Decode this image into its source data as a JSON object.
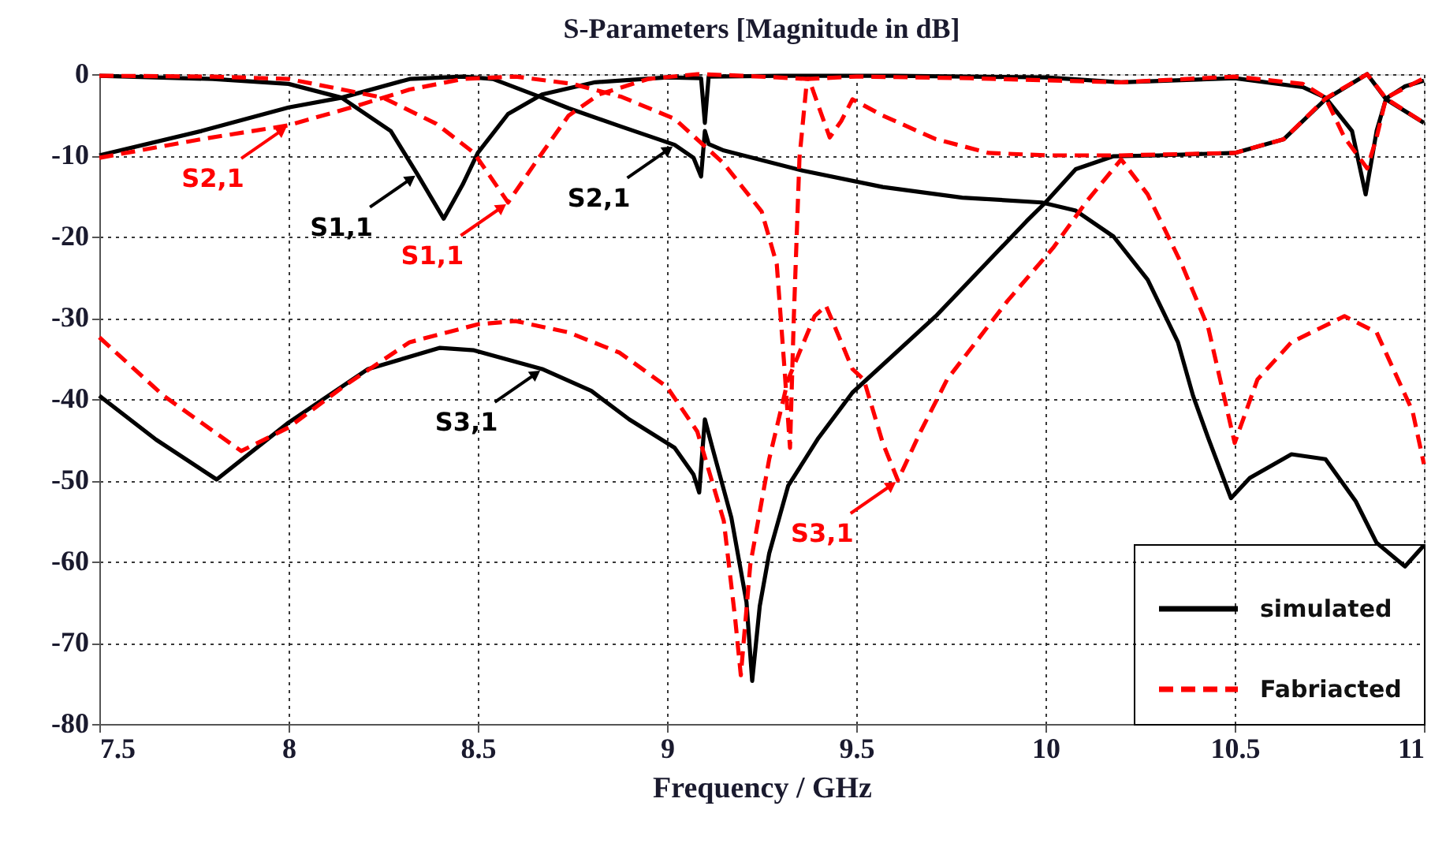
{
  "chart_data": {
    "type": "line",
    "title": "S-Parameters [Magnitude in dB]",
    "xlabel": "Frequency / GHz",
    "xlim": [
      7.5,
      11
    ],
    "xticks": [
      7.5,
      8,
      8.5,
      9,
      9.5,
      10,
      10.5,
      11
    ],
    "ylim": [
      -80,
      0
    ],
    "yticks": [
      -80,
      -70,
      -60,
      -50,
      -40,
      -30,
      -20,
      -10,
      0
    ],
    "grid": true,
    "legend": "bottom right",
    "marker": "none",
    "series": [
      {
        "name": "simulated",
        "color": "#000000",
        "line_style": "solid",
        "x": [
          7.5,
          7.8,
          8.0,
          8.14,
          8.27,
          8.34,
          8.41,
          8.46,
          8.5,
          8.58,
          8.67,
          8.81,
          9.0,
          9.09,
          9.1,
          9.11,
          9.3,
          9.6,
          10.0,
          10.2,
          10.5,
          10.68,
          10.74,
          10.81,
          10.846,
          10.875,
          10.9,
          10.95,
          11
        ],
        "values": [
          -0.2,
          -0.6,
          -1.2,
          -2.9,
          -7,
          -12.3,
          -17.8,
          -13.6,
          -9.7,
          -4.9,
          -2.5,
          -1,
          -0.4,
          -0.5,
          -6,
          -0.3,
          -0.2,
          -0.2,
          -0.4,
          -1,
          -0.5,
          -1.6,
          -2.9,
          -7,
          -14.8,
          -7,
          -3,
          -1.5,
          -0.8
        ]
      },
      {
        "color": "#000000",
        "line_style": "solid",
        "x": [
          7.5,
          7.77,
          8.0,
          8.14,
          8.32,
          8.46,
          8.54,
          8.67,
          8.74,
          8.875,
          9.02,
          9.07,
          9.09,
          9.1,
          9.11,
          9.15,
          9.36,
          9.57,
          9.78,
          9.99,
          10.08,
          10.18,
          10.27,
          10.35,
          10.39,
          10.43,
          10.49,
          10.54,
          10.65,
          10.74,
          10.82,
          10.875,
          10.95,
          11
        ],
        "values": [
          -10,
          -7,
          -4.1,
          -2.9,
          -0.6,
          -0.3,
          -0.6,
          -2.9,
          -4.2,
          -6.4,
          -8.7,
          -10.3,
          -12.6,
          -7,
          -8.6,
          -9.4,
          -11.9,
          -13.9,
          -15.2,
          -15.8,
          -16.8,
          -20,
          -25.3,
          -33,
          -39.6,
          -44.8,
          -52.2,
          -49.7,
          -46.8,
          -47.4,
          -52.6,
          -57.7,
          -60.6,
          -58
        ]
      },
      {
        "color": "#000000",
        "line_style": "solid",
        "x": [
          7.5,
          7.65,
          7.81,
          8.0,
          8.21,
          8.4,
          8.49,
          8.67,
          8.8,
          8.9,
          9.02,
          9.07,
          9.085,
          9.1,
          9.12,
          9.17,
          9.21,
          9.225,
          9.245,
          9.27,
          9.32,
          9.4,
          9.49,
          9.71,
          9.95,
          10.0,
          10.08,
          10.18,
          10.3,
          10.5,
          10.63,
          10.74,
          10.85,
          10.9,
          11
        ],
        "values": [
          -39.6,
          -45,
          -49.9,
          -42.9,
          -36.3,
          -33.7,
          -34,
          -36.3,
          -39,
          -42.5,
          -46,
          -49.3,
          -51.5,
          -42.5,
          -46,
          -54.6,
          -65,
          -74.7,
          -65.5,
          -59,
          -50.7,
          -44.8,
          -39.2,
          -29.8,
          -18.1,
          -15.8,
          -11.7,
          -10.1,
          -10,
          -9.7,
          -8,
          -3.1,
          0,
          -3.1,
          -6
        ]
      },
      {
        "name": "Fabriacted",
        "color": "#ff0000",
        "line_style": "dashed",
        "x": [
          7.5,
          7.8,
          8.0,
          8.11,
          8.25,
          8.39,
          8.49,
          8.58,
          8.67,
          8.74,
          8.82,
          8.95,
          9.08,
          9.2,
          9.375,
          9.4,
          9.43,
          9.46,
          9.49,
          9.57,
          9.71,
          9.85,
          10.0,
          10.2,
          10.5,
          10.63,
          10.74,
          10.85,
          10.9,
          11
        ],
        "values": [
          -0.2,
          -0.3,
          -0.6,
          -1.6,
          -2.9,
          -6.1,
          -9.7,
          -15.8,
          -9.7,
          -5.1,
          -2.5,
          -0.6,
          0,
          -0.2,
          -0.6,
          -3.9,
          -7.8,
          -5.8,
          -3.1,
          -5.1,
          -8,
          -9.7,
          -10,
          -10,
          -9.7,
          -8,
          -3,
          0,
          -3,
          -6
        ]
      },
      {
        "color": "#ff0000",
        "line_style": "dashed",
        "x": [
          7.5,
          7.77,
          8.0,
          8.18,
          8.32,
          8.46,
          8.6,
          8.75,
          8.88,
          9.02,
          9.15,
          9.25,
          9.29,
          9.31,
          9.325,
          9.335,
          9.35,
          9.37,
          9.5,
          9.8,
          10.2,
          10.5,
          10.68,
          10.74,
          10.79,
          10.85,
          10.875,
          10.9,
          11
        ],
        "values": [
          -10.3,
          -8,
          -6.3,
          -3.9,
          -1.9,
          -0.6,
          -0.3,
          -1.2,
          -2.8,
          -5.5,
          -11,
          -16.9,
          -23.4,
          -36,
          -46,
          -30,
          -10.3,
          -0.6,
          -0.3,
          -0.5,
          -1,
          -0.3,
          -1.2,
          -2.9,
          -7.8,
          -11.6,
          -7.8,
          -2.9,
          -0.5
        ]
      },
      {
        "color": "#ff0000",
        "line_style": "dashed",
        "x": [
          7.5,
          7.67,
          7.875,
          8.0,
          8.15,
          8.32,
          8.5,
          8.6,
          8.74,
          8.875,
          9.0,
          9.08,
          9.15,
          9.18,
          9.195,
          9.22,
          9.27,
          9.32,
          9.39,
          9.42,
          9.49,
          9.52,
          9.57,
          9.61,
          9.67,
          9.74,
          9.9,
          10.02,
          10.11,
          10.2,
          10.27,
          10.36,
          10.43,
          10.5,
          10.56,
          10.65,
          10.79,
          10.875,
          10.97,
          11
        ],
        "values": [
          -32.4,
          -39.6,
          -46.4,
          -43.5,
          -38.3,
          -33,
          -30.8,
          -30.4,
          -31.8,
          -34.3,
          -38.5,
          -44,
          -55,
          -67,
          -74,
          -60.4,
          -47.4,
          -37.6,
          -29.8,
          -28.5,
          -36.3,
          -37.6,
          -45.4,
          -50,
          -44,
          -37.6,
          -27.9,
          -21.4,
          -15.6,
          -10.5,
          -14.8,
          -23.4,
          -31.2,
          -45.4,
          -37.6,
          -33,
          -29.8,
          -31.8,
          -41.5,
          -48
        ]
      }
    ],
    "annotations": [
      {
        "text": "S1,1",
        "x": 8.34,
        "y": -12.3
      },
      {
        "text": "S2,1",
        "x": 8.0,
        "y": -6.3
      },
      {
        "text": "S1,1",
        "x": 8.58,
        "y": -15.8
      },
      {
        "text": "S2,1",
        "x": 9.02,
        "y": -8.7
      },
      {
        "text": "S3,1",
        "x": 8.67,
        "y": -36.3
      },
      {
        "text": "S3,1",
        "x": 9.61,
        "y": -50
      }
    ]
  }
}
